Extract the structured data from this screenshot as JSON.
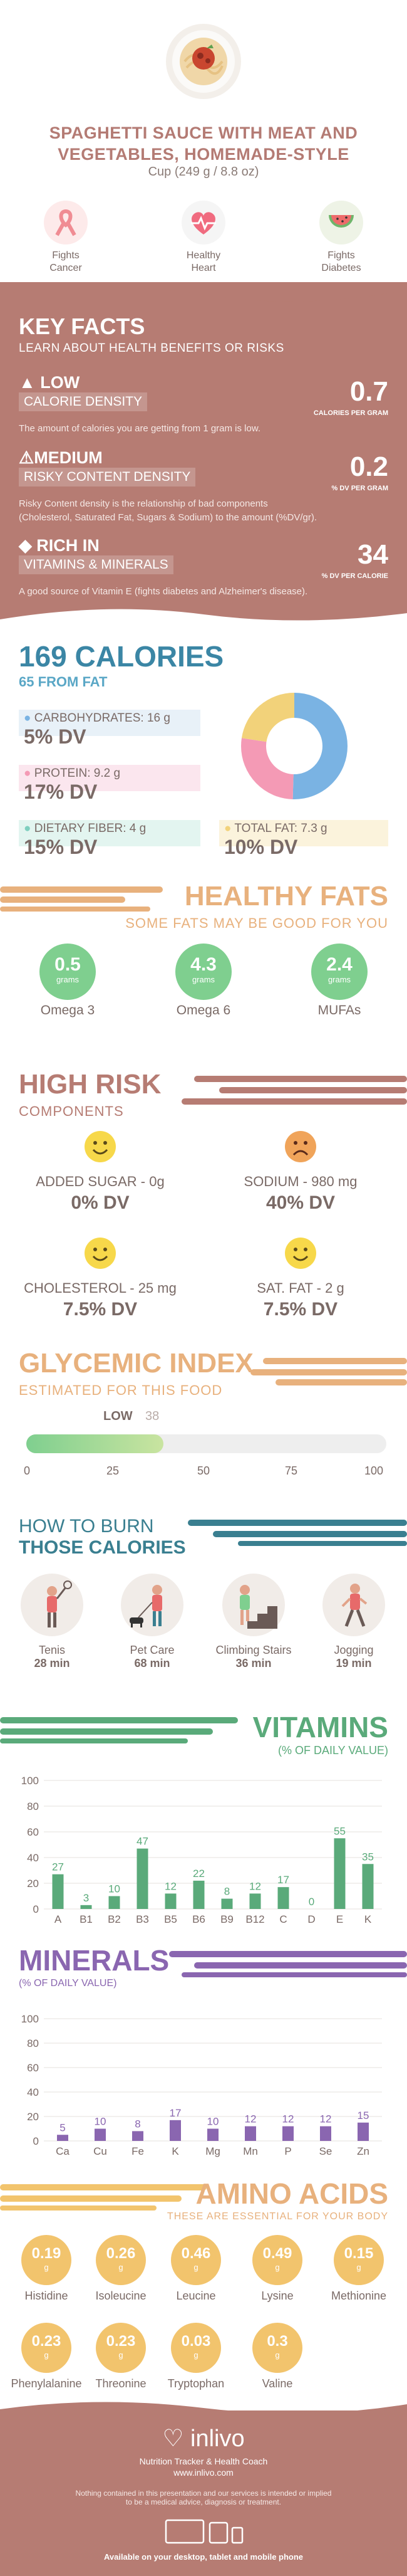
{
  "header": {
    "title_line1": "SPAGHETTI SAUCE WITH MEAT AND",
    "title_line2": "VEGETABLES, HOMEMADE-STYLE",
    "serving": "Cup (249 g / 8.8 oz)"
  },
  "badges": [
    {
      "label_l1": "Fights",
      "label_l2": "Cancer",
      "icon": "ribbon-icon",
      "color": "#f4a3a6"
    },
    {
      "label_l1": "Healthy",
      "label_l2": "Heart",
      "icon": "heart-pulse-icon",
      "color": "#f7f7f7"
    },
    {
      "label_l1": "Fights",
      "label_l2": "Diabetes",
      "icon": "watermelon-icon",
      "color": "#eef3e6"
    }
  ],
  "key_facts": {
    "title": "KEY FACTS",
    "subtitle": "LEARN ABOUT HEALTH BENEFITS OR RISKS",
    "items": [
      {
        "level": "LOW",
        "name": "CALORIE DENSITY",
        "desc_l1": "The amount of calories you are getting from 1 gram is low.",
        "desc_l2": "",
        "value": "0.7",
        "unit": "CALORIES PER GRAM"
      },
      {
        "level": "MEDIUM",
        "name": "RISKY CONTENT DENSITY",
        "desc_l1": "Risky Content density is the relationship of bad components",
        "desc_l2": "(Cholesterol, Saturated Fat, Sugars & Sodium) to the amount (%DV/gr).",
        "value": "0.2",
        "unit": "% DV PER GRAM"
      },
      {
        "level": "RICH  IN",
        "name": "VITAMINS & MINERALS",
        "desc_l1": "A good source of Vitamin E (fights diabetes and Alzheimer's disease).",
        "desc_l2": "",
        "value": "34",
        "unit": "% DV PER CALORIE"
      }
    ]
  },
  "calories": {
    "title": "169 CALORIES",
    "from_fat": "65 FROM FAT",
    "carbs_label": "CARBOHYDRATES: 16 g",
    "carbs_dv": "5% DV",
    "protein_label": "PROTEIN: 9.2 g",
    "protein_dv": "17% DV",
    "fiber_label": "DIETARY FIBER: 4 g",
    "fiber_dv": "15% DV",
    "fat_label": "TOTAL FAT: 7.3 g",
    "fat_dv": "10% DV",
    "colors": {
      "carbs": "#7ab3e3",
      "protein": "#f49ab5",
      "fiber": "#7fcfbf",
      "fat": "#f2d27a"
    }
  },
  "healthy_fats": {
    "title": "HEALTHY FATS",
    "subtitle": "SOME FATS MAY BE GOOD FOR YOU",
    "items": [
      {
        "value": "0.5",
        "unit": "grams",
        "name": "Omega 3"
      },
      {
        "value": "4.3",
        "unit": "grams",
        "name": "Omega 6"
      },
      {
        "value": "2.4",
        "unit": "grams",
        "name": "MUFAs"
      }
    ]
  },
  "high_risk": {
    "title": "HIGH RISK",
    "subtitle": "COMPONENTS",
    "items": [
      {
        "label": "ADDED SUGAR - 0g",
        "dv": "0% DV",
        "face": "happy-face-icon"
      },
      {
        "label": "SODIUM - 980 mg",
        "dv": "40% DV",
        "face": "sad-face-icon"
      },
      {
        "label": "CHOLESTEROL - 25 mg",
        "dv": "7.5% DV",
        "face": "happy-face-icon"
      },
      {
        "label": "SAT. FAT - 2 g",
        "dv": "7.5% DV",
        "face": "happy-face-icon"
      }
    ]
  },
  "glycemic": {
    "title": "GLYCEMIC INDEX",
    "subtitle": "ESTIMATED FOR THIS FOOD",
    "level": "LOW",
    "value": "38",
    "value_num": 38,
    "ticks": [
      "0",
      "25",
      "50",
      "75",
      "100"
    ]
  },
  "burn": {
    "title_l1": "HOW TO BURN",
    "title_l2": "THOSE CALORIES",
    "items": [
      {
        "name": "Tenis",
        "time": "28 min",
        "icon": "tennis-player-icon"
      },
      {
        "name": "Pet Care",
        "time": "68 min",
        "icon": "dog-walker-icon"
      },
      {
        "name": "Climbing Stairs",
        "time": "36 min",
        "icon": "stairs-climber-icon"
      },
      {
        "name": "Jogging",
        "time": "19 min",
        "icon": "jogger-icon"
      }
    ]
  },
  "vitamins": {
    "title": "VITAMINS",
    "subtitle": "(% OF DAILY VALUE)"
  },
  "minerals": {
    "title": "MINERALS",
    "subtitle": "(% OF DAILY VALUE)"
  },
  "chart_data": [
    {
      "type": "bar",
      "title": "VITAMINS",
      "categories": [
        "A",
        "B1",
        "B2",
        "B3",
        "B5",
        "B6",
        "B9",
        "B12",
        "C",
        "D",
        "E",
        "K"
      ],
      "values": [
        27,
        3,
        10,
        47,
        12,
        22,
        8,
        12,
        17,
        0,
        55,
        35
      ],
      "ylim": [
        0,
        100
      ],
      "yticks": [
        "0",
        "20",
        "40",
        "60",
        "80",
        "100"
      ],
      "color": "#5aaa7a"
    },
    {
      "type": "bar",
      "title": "MINERALS",
      "categories": [
        "Ca",
        "Cu",
        "Fe",
        "K",
        "Mg",
        "Mn",
        "P",
        "Se",
        "Zn"
      ],
      "values": [
        5,
        10,
        8,
        17,
        10,
        12,
        12,
        12,
        15
      ],
      "ylim": [
        0,
        100
      ],
      "yticks": [
        "0",
        "20",
        "40",
        "60",
        "80",
        "100"
      ],
      "color": "#8a66b0"
    }
  ],
  "amino": {
    "title": "AMINO ACIDS",
    "subtitle": "THESE ARE ESSENTIAL FOR YOUR BODY",
    "items": [
      {
        "value": "0.19",
        "unit": "g",
        "name": "Histidine"
      },
      {
        "value": "0.26",
        "unit": "g",
        "name": "Isoleucine"
      },
      {
        "value": "0.46",
        "unit": "g",
        "name": "Leucine"
      },
      {
        "value": "0.49",
        "unit": "g",
        "name": "Lysine"
      },
      {
        "value": "0.15",
        "unit": "g",
        "name": "Methionine"
      },
      {
        "value": "0.23",
        "unit": "g",
        "name": "Phenylalanine"
      },
      {
        "value": "0.23",
        "unit": "g",
        "name": "Threonine"
      },
      {
        "value": "0.03",
        "unit": "g",
        "name": "Tryptophan"
      },
      {
        "value": "0.3",
        "unit": "g",
        "name": "Valine"
      }
    ]
  },
  "footer": {
    "brand": "inlivo",
    "tagline": "Nutrition Tracker & Health Coach",
    "url": "www.inlivo.com",
    "disclaimer_l1": "Nothing contained in this presentation and our services is intended or implied",
    "disclaimer_l2": "to be a medical advice, diagnosis or treatment.",
    "available": "Available on your desktop, tablet and mobile phone"
  }
}
